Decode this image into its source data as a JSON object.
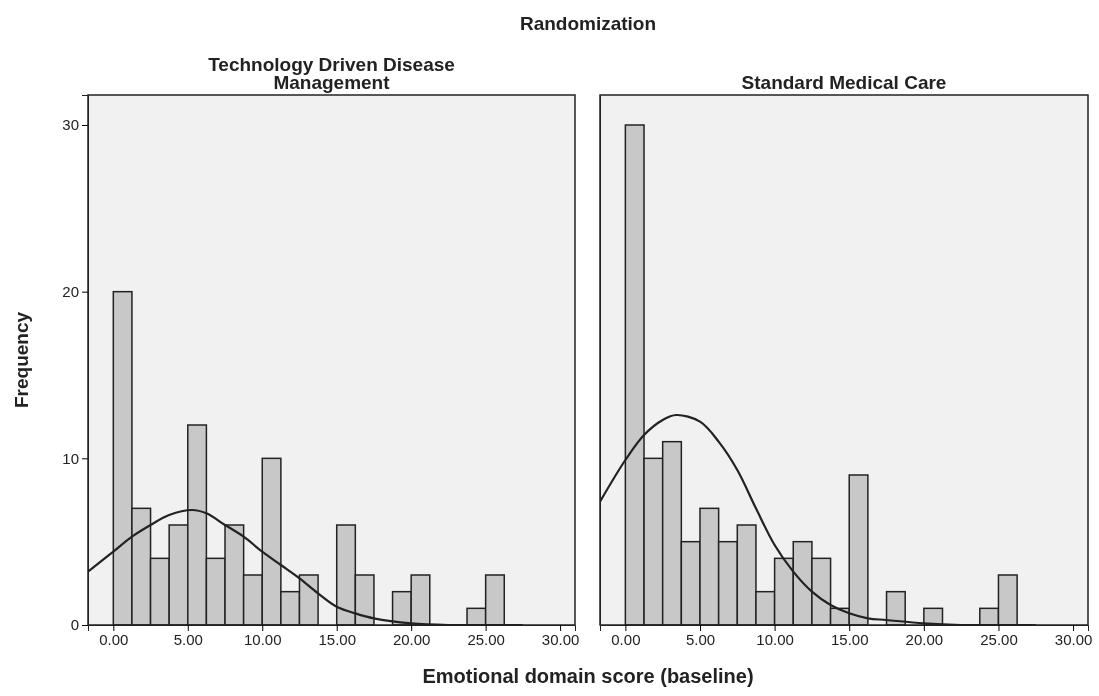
{
  "chart_data": [
    {
      "type": "histogram",
      "title": "Technology Driven Disease\nManagement",
      "annotations": [
        "Randomization"
      ],
      "ylabel": "Frequency",
      "xlabel": "Emotional domain score (baseline)",
      "bins": [
        0,
        1.25,
        2.5,
        3.75,
        5,
        6.25,
        7.5,
        8.75,
        10,
        11.25,
        12.5,
        13.75,
        15,
        16.25,
        17.5,
        18.75,
        20,
        21.25,
        22.5,
        23.75,
        25,
        26.25
      ],
      "xlim": [
        -1.7,
        31
      ],
      "xticks": [
        {
          "value": 0,
          "label": "0.00"
        },
        {
          "value": 5,
          "label": "5.00"
        },
        {
          "value": 10,
          "label": "10.00"
        },
        {
          "value": 15,
          "label": "15.00"
        },
        {
          "value": 20,
          "label": "20.00"
        },
        {
          "value": 25,
          "label": "25.00"
        },
        {
          "value": 30,
          "label": "30.00"
        }
      ],
      "ylim": [
        0,
        31.8
      ],
      "yticks": [
        0,
        10,
        20,
        30
      ],
      "series": [
        {
          "color": "#c8c8c8",
          "values": [
            20,
            7,
            4,
            6,
            12,
            4,
            6,
            3,
            10,
            2,
            3,
            0,
            6,
            3,
            0,
            2,
            3,
            0,
            0,
            1,
            3
          ]
        },
        {
          "type": "line",
          "color": "#222222",
          "x": [
            -1.7,
            0,
            1.25,
            2.5,
            3.75,
            5.3,
            6.25,
            7.5,
            8.75,
            10,
            11.25,
            12.5,
            13.75,
            15,
            16.25,
            17.5,
            20,
            22.5,
            25,
            27.5
          ],
          "values": [
            3.2,
            4.4,
            5.3,
            6.0,
            6.6,
            6.9,
            6.7,
            6.0,
            5.3,
            4.4,
            3.6,
            2.8,
            1.9,
            1.1,
            0.7,
            0.4,
            0.1,
            0,
            0,
            0
          ]
        }
      ]
    },
    {
      "type": "histogram",
      "title": "Standard Medical Care",
      "tick_labels": "x",
      "bins": [
        0,
        1.25,
        2.5,
        3.75,
        5,
        6.25,
        7.5,
        8.75,
        10,
        11.25,
        12.5,
        13.75,
        15,
        16.25,
        17.5,
        18.75,
        20,
        21.25,
        22.5,
        23.75,
        25,
        26.25
      ],
      "xlim": [
        -1.7,
        31
      ],
      "xticks": [
        {
          "value": 0,
          "label": "0.00"
        },
        {
          "value": 5,
          "label": "5.00"
        },
        {
          "value": 10,
          "label": "10.00"
        },
        {
          "value": 15,
          "label": "15.00"
        },
        {
          "value": 20,
          "label": "20.00"
        },
        {
          "value": 25,
          "label": "25.00"
        },
        {
          "value": 30,
          "label": "30.00"
        }
      ],
      "ylim": [
        0,
        31.8
      ],
      "yticks": [
        0,
        10,
        20,
        30
      ],
      "series": [
        {
          "color": "#c8c8c8",
          "values": [
            30,
            10,
            11,
            5,
            7,
            5,
            6,
            2,
            4,
            5,
            4,
            1,
            9,
            0,
            2,
            0,
            1,
            0,
            0,
            1,
            3
          ]
        },
        {
          "type": "line",
          "color": "#222222",
          "x": [
            -1.7,
            0,
            1.25,
            2.5,
            3.4,
            5,
            6.25,
            7.5,
            8.75,
            10,
            11.25,
            12.5,
            13.75,
            15,
            16.25,
            17.5,
            20,
            22.5,
            25,
            27.5
          ],
          "values": [
            7.4,
            9.9,
            11.4,
            12.3,
            12.6,
            12.2,
            11.0,
            9.3,
            7.0,
            4.8,
            3.2,
            2.0,
            1.2,
            0.7,
            0.4,
            0.3,
            0.1,
            0,
            0,
            0
          ]
        }
      ]
    }
  ]
}
